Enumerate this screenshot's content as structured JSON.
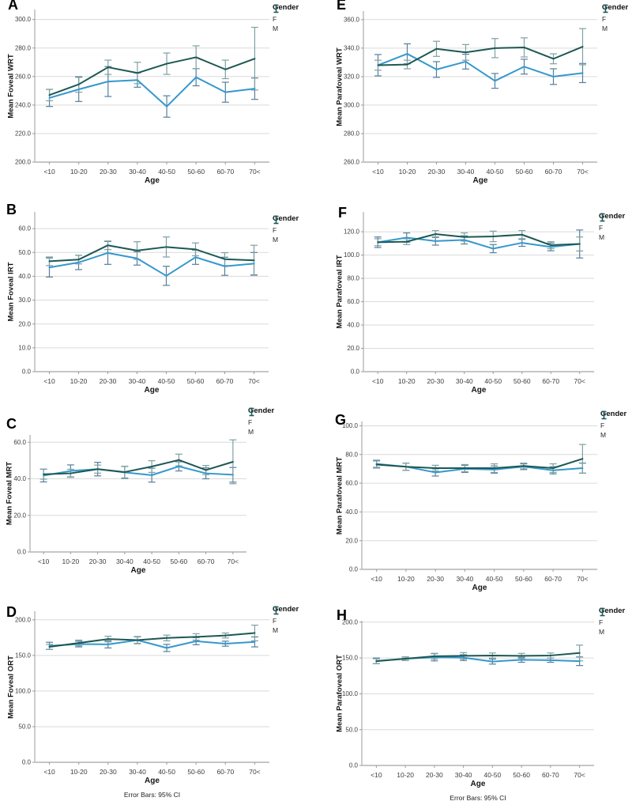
{
  "figure": {
    "legend": {
      "title": "Gender",
      "items": [
        {
          "label": "F",
          "color": "#3598cd",
          "error_color": "#557f9d"
        },
        {
          "label": "M",
          "color": "#1d5852",
          "error_color": "#7fa0a4"
        }
      ]
    },
    "footnote": "Error Bars: 95% CI"
  },
  "chart_data": [
    {
      "id": "A",
      "type": "line",
      "ylabel": "Mean Foveal WRT",
      "xlabel": "Age",
      "legend_title": "Gender",
      "legend_position": "top-right",
      "grid": true,
      "categories": [
        "<10",
        "10-20",
        "20-30",
        "30-40",
        "40-50",
        "50-60",
        "60-70",
        "70<"
      ],
      "ymin": 200,
      "ymax": 307,
      "yticks": [
        200,
        220,
        240,
        260,
        280,
        300
      ],
      "series": [
        {
          "name": "F",
          "color": "#3598cd",
          "error_color": "#557f9d",
          "values": [
            245,
            251,
            256.5,
            257.5,
            239,
            259.5,
            249,
            251.5
          ],
          "ci_half": [
            6,
            8.5,
            10.5,
            5,
            7.5,
            6,
            7,
            7.5
          ]
        },
        {
          "name": "M",
          "color": "#1d5852",
          "error_color": "#7fa0a4",
          "values": [
            247,
            254.5,
            266.5,
            262.5,
            269,
            273.5,
            265,
            272.5
          ],
          "ci_half": [
            4,
            5.5,
            5,
            7.5,
            7.5,
            8,
            6.5,
            22
          ]
        }
      ]
    },
    {
      "id": "B",
      "type": "line",
      "ylabel": "Mean Foveal IRT",
      "xlabel": "Age",
      "legend_title": "Gender",
      "legend_position": "top-right",
      "grid": true,
      "categories": [
        "<10",
        "10-20",
        "20-30",
        "30-40",
        "40-50",
        "50-60",
        "60-70",
        "70<"
      ],
      "ymin": 0,
      "ymax": 67,
      "yticks": [
        0,
        10,
        20,
        30,
        40,
        50,
        60
      ],
      "series": [
        {
          "name": "F",
          "color": "#3598cd",
          "error_color": "#557f9d",
          "values": [
            43.7,
            45.8,
            49.8,
            47.5,
            40.2,
            48,
            44.2,
            45.3
          ],
          "ci_half": [
            4,
            3,
            4.8,
            2.8,
            4,
            3,
            3.8,
            4.7
          ]
        },
        {
          "name": "M",
          "color": "#1d5852",
          "error_color": "#7fa0a4",
          "values": [
            46.3,
            47,
            53,
            50.8,
            52.3,
            51.3,
            47.2,
            46.7
          ],
          "ci_half": [
            1.8,
            1.8,
            1.8,
            3.7,
            4.2,
            2.7,
            2.7,
            6.3
          ]
        }
      ]
    },
    {
      "id": "C",
      "type": "line",
      "ylabel": "Mean Foveal MRT",
      "xlabel": "Age",
      "legend_title": "Gender",
      "legend_position": "top-right",
      "grid": true,
      "categories": [
        "<10",
        "10-20",
        "20-30",
        "30-40",
        "40-50",
        "50-60",
        "60-70",
        "70<"
      ],
      "ymin": 0,
      "ymax": 64,
      "yticks": [
        0,
        20,
        40,
        60
      ],
      "series": [
        {
          "name": "F",
          "color": "#3598cd",
          "error_color": "#557f9d",
          "values": [
            41.8,
            44.3,
            45.3,
            43.5,
            42,
            46.8,
            43,
            42.2
          ],
          "ci_half": [
            3.5,
            3.3,
            3.7,
            3.3,
            3.8,
            2.5,
            3,
            4
          ]
        },
        {
          "name": "M",
          "color": "#1d5852",
          "error_color": "#7fa0a4",
          "values": [
            42.5,
            43,
            45.3,
            43.7,
            46.7,
            50.3,
            44.8,
            49.3
          ],
          "ci_half": [
            2.7,
            2.2,
            2.2,
            3.2,
            3.2,
            3.2,
            2.5,
            12
          ]
        }
      ]
    },
    {
      "id": "D",
      "type": "line",
      "ylabel": "Mean Foveal ORT",
      "xlabel": "Age",
      "legend_title": "Gender",
      "legend_position": "top-right",
      "grid": true,
      "error_note": "Error Bars: 95% CI",
      "categories": [
        "<10",
        "10-20",
        "20-30",
        "30-40",
        "40-50",
        "50-60",
        "60-70",
        "70<"
      ],
      "ymin": 0,
      "ymax": 212,
      "yticks": [
        0,
        50,
        100,
        150,
        200
      ],
      "series": [
        {
          "name": "F",
          "color": "#3598cd",
          "error_color": "#557f9d",
          "values": [
            163.5,
            166,
            165.5,
            171.5,
            160.5,
            170,
            166.5,
            169
          ],
          "ci_half": [
            5,
            4,
            5,
            5,
            5,
            5,
            3.5,
            7
          ]
        },
        {
          "name": "M",
          "color": "#1d5852",
          "error_color": "#7fa0a4",
          "values": [
            162,
            167.5,
            173,
            171.5,
            174.5,
            176,
            178,
            181.5
          ],
          "ci_half": [
            3.5,
            4,
            4,
            4.5,
            4,
            4.5,
            3.5,
            11
          ]
        }
      ]
    },
    {
      "id": "E",
      "type": "line",
      "ylabel": "Mean Parafoveal WRT",
      "xlabel": "Age",
      "legend_title": "Gender",
      "legend_position": "top-right",
      "grid": true,
      "categories": [
        "<10",
        "10-20",
        "20-30",
        "30-40",
        "40-50",
        "50-60",
        "60-70",
        "70<"
      ],
      "ymin": 260,
      "ymax": 366,
      "yticks": [
        260,
        280,
        300,
        320,
        340,
        360
      ],
      "series": [
        {
          "name": "F",
          "color": "#3598cd",
          "error_color": "#557f9d",
          "values": [
            328,
            336,
            325,
            330.5,
            317,
            327,
            320,
            322.5
          ],
          "ci_half": [
            7.5,
            7,
            5.5,
            5.2,
            5.2,
            5.2,
            5.5,
            6.7
          ]
        },
        {
          "name": "M",
          "color": "#1d5852",
          "error_color": "#7fa0a4",
          "values": [
            328,
            328.5,
            339.5,
            337,
            340,
            340.5,
            332.5,
            341
          ],
          "ci_half": [
            3.5,
            3,
            5.3,
            5.5,
            6.7,
            6.7,
            3.5,
            12.7
          ]
        }
      ]
    },
    {
      "id": "F",
      "type": "line",
      "ylabel": "Mean Parafoveal IRT",
      "xlabel": "Age",
      "legend_title": "Gender",
      "legend_position": "top-right",
      "grid": true,
      "categories": [
        "<10",
        "10-20",
        "20-30",
        "30-40",
        "40-50",
        "50-60",
        "60-70",
        "70<"
      ],
      "ymin": 0,
      "ymax": 137,
      "yticks": [
        0,
        20,
        40,
        60,
        80,
        100,
        120
      ],
      "series": [
        {
          "name": "F",
          "color": "#3598cd",
          "error_color": "#557f9d",
          "values": [
            111,
            115,
            112,
            113,
            105.5,
            110.5,
            107,
            109.5
          ],
          "ci_half": [
            4.5,
            4,
            3.5,
            3.5,
            3.5,
            3,
            3.3,
            12
          ]
        },
        {
          "name": "M",
          "color": "#1d5852",
          "error_color": "#7fa0a4",
          "values": [
            111,
            111.5,
            118,
            115.5,
            116,
            117.5,
            108.5,
            109.5
          ],
          "ci_half": [
            3,
            2.5,
            3,
            3.5,
            4.5,
            3.5,
            3,
            6
          ]
        }
      ]
    },
    {
      "id": "G",
      "type": "line",
      "ylabel": "Mean Parafoveal MRT",
      "xlabel": "Age",
      "legend_title": "Gender",
      "legend_position": "top-right",
      "grid": true,
      "categories": [
        "<10",
        "10-20",
        "20-30",
        "30-40",
        "40-50",
        "50-60",
        "60-70",
        "70<"
      ],
      "ymin": 0,
      "ymax": 103,
      "yticks": [
        0,
        20,
        40,
        60,
        80,
        100
      ],
      "series": [
        {
          "name": "F",
          "color": "#3598cd",
          "error_color": "#557f9d",
          "values": [
            73.5,
            71.5,
            67.5,
            70,
            69.5,
            71.5,
            69,
            70.5
          ],
          "ci_half": [
            2.5,
            2.5,
            2.5,
            2.5,
            2.5,
            2,
            2.5,
            3.5
          ]
        },
        {
          "name": "M",
          "color": "#1d5852",
          "error_color": "#7fa0a4",
          "values": [
            73,
            71.5,
            70.5,
            70.5,
            70.5,
            72,
            70.5,
            77
          ],
          "ci_half": [
            2.5,
            2.5,
            2,
            2.5,
            3,
            2,
            3,
            10
          ]
        }
      ]
    },
    {
      "id": "H",
      "type": "line",
      "ylabel": "Mean Parafoveal ORT",
      "xlabel": "Age",
      "legend_title": "Gender",
      "legend_position": "top-right",
      "grid": true,
      "error_note": "Error Bars: 95% CI",
      "categories": [
        "<10",
        "10-20",
        "20-30",
        "30-40",
        "40-50",
        "50-60",
        "60-70",
        "70<"
      ],
      "ymin": 0,
      "ymax": 202,
      "yticks": [
        0,
        50,
        100,
        150,
        200
      ],
      "series": [
        {
          "name": "F",
          "color": "#3598cd",
          "error_color": "#557f9d",
          "values": [
            146,
            149,
            151,
            150.5,
            145,
            147.5,
            147,
            145.5
          ],
          "ci_half": [
            4,
            2.5,
            5,
            4,
            3.5,
            3.5,
            3,
            6
          ]
        },
        {
          "name": "M",
          "color": "#1d5852",
          "error_color": "#7fa0a4",
          "values": [
            145.5,
            149,
            152.5,
            153,
            153.5,
            153,
            153.5,
            157
          ],
          "ci_half": [
            3.5,
            2.5,
            4,
            4.5,
            3.5,
            3.5,
            3.5,
            11
          ]
        }
      ]
    }
  ]
}
